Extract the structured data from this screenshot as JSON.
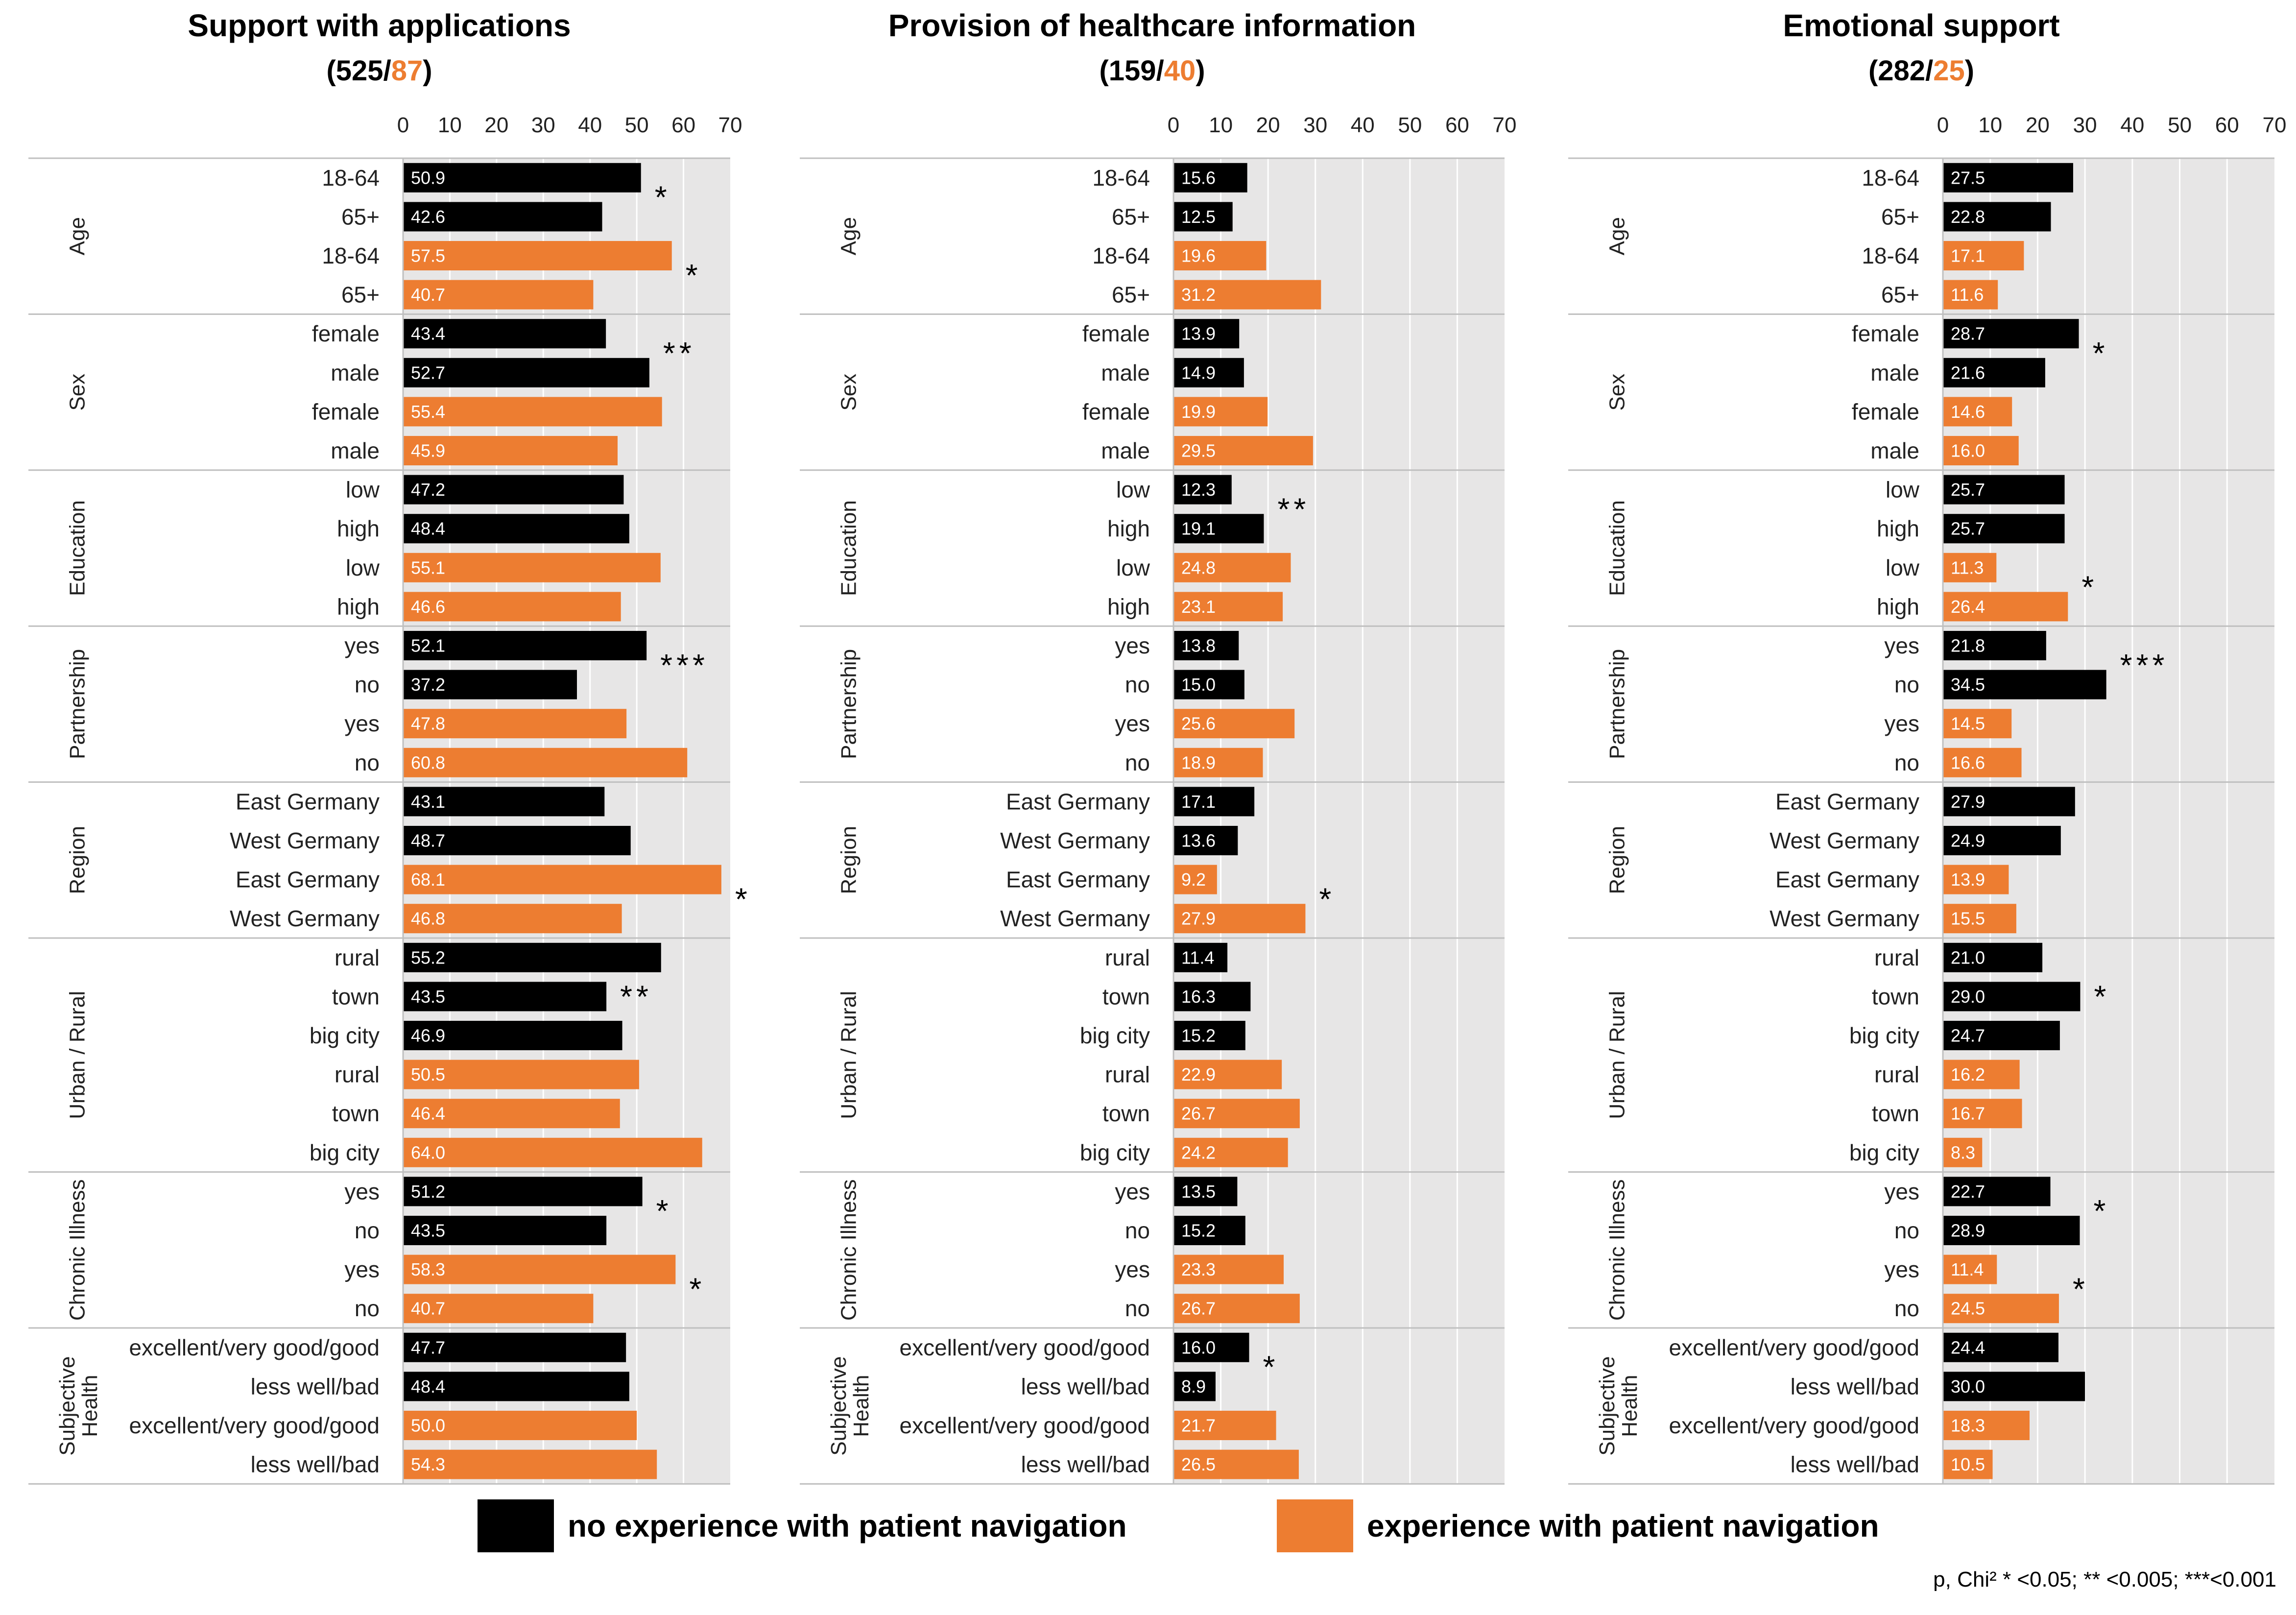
{
  "chart_data": [
    {
      "type": "bar",
      "title": "Support with applications",
      "n_no": "525",
      "n_sep": "/",
      "n_yes": "87",
      "xlim": [
        0,
        70
      ],
      "xticks": [
        "0",
        "10",
        "20",
        "30",
        "40",
        "50",
        "60",
        "70"
      ],
      "groups": [
        {
          "label": "Age",
          "sig": [
            {
              "text": "*",
              "rows": [
                0,
                1
              ]
            },
            {
              "text": "*",
              "rows": [
                2,
                3
              ]
            }
          ],
          "rows": [
            {
              "label": "18-64",
              "series": "no",
              "value": "50.9"
            },
            {
              "label": "65+",
              "series": "no",
              "value": "42.6"
            },
            {
              "label": "18-64",
              "series": "yes",
              "value": "57.5"
            },
            {
              "label": "65+",
              "series": "yes",
              "value": "40.7"
            }
          ]
        },
        {
          "label": "Sex",
          "sig": [
            {
              "text": "**",
              "rows": [
                0,
                1
              ]
            }
          ],
          "rows": [
            {
              "label": "female",
              "series": "no",
              "value": "43.4"
            },
            {
              "label": "male",
              "series": "no",
              "value": "52.7"
            },
            {
              "label": "female",
              "series": "yes",
              "value": "55.4"
            },
            {
              "label": "male",
              "series": "yes",
              "value": "45.9"
            }
          ]
        },
        {
          "label": "Education",
          "sig": [],
          "rows": [
            {
              "label": "low",
              "series": "no",
              "value": "47.2"
            },
            {
              "label": "high",
              "series": "no",
              "value": "48.4"
            },
            {
              "label": "low",
              "series": "yes",
              "value": "55.1"
            },
            {
              "label": "high",
              "series": "yes",
              "value": "46.6"
            }
          ]
        },
        {
          "label": "Partnership",
          "sig": [
            {
              "text": "***",
              "rows": [
                0,
                1
              ]
            }
          ],
          "rows": [
            {
              "label": "yes",
              "series": "no",
              "value": "52.1"
            },
            {
              "label": "no",
              "series": "no",
              "value": "37.2"
            },
            {
              "label": "yes",
              "series": "yes",
              "value": "47.8"
            },
            {
              "label": "no",
              "series": "yes",
              "value": "60.8"
            }
          ]
        },
        {
          "label": "Region",
          "sig": [
            {
              "text": "*",
              "rows": [
                2,
                3
              ]
            }
          ],
          "rows": [
            {
              "label": "East Germany",
              "series": "no",
              "value": "43.1"
            },
            {
              "label": "West Germany",
              "series": "no",
              "value": "48.7"
            },
            {
              "label": "East Germany",
              "series": "yes",
              "value": "68.1"
            },
            {
              "label": "West Germany",
              "series": "yes",
              "value": "46.8"
            }
          ]
        },
        {
          "label": "Urban / Rural",
          "sig": [
            {
              "text": "**",
              "rows": [
                1,
                1
              ]
            }
          ],
          "rows": [
            {
              "label": "rural",
              "series": "no",
              "value": "55.2"
            },
            {
              "label": "town",
              "series": "no",
              "value": "43.5"
            },
            {
              "label": "big city",
              "series": "no",
              "value": "46.9"
            },
            {
              "label": "rural",
              "series": "yes",
              "value": "50.5"
            },
            {
              "label": "town",
              "series": "yes",
              "value": "46.4"
            },
            {
              "label": "big city",
              "series": "yes",
              "value": "64.0"
            }
          ]
        },
        {
          "label": "Chronic Illness",
          "sig": [
            {
              "text": "*",
              "rows": [
                0,
                1
              ]
            },
            {
              "text": "*",
              "rows": [
                2,
                3
              ]
            }
          ],
          "rows": [
            {
              "label": "yes",
              "series": "no",
              "value": "51.2"
            },
            {
              "label": "no",
              "series": "no",
              "value": "43.5"
            },
            {
              "label": "yes",
              "series": "yes",
              "value": "58.3"
            },
            {
              "label": "no",
              "series": "yes",
              "value": "40.7"
            }
          ]
        },
        {
          "label": "Subjective Health",
          "sig": [],
          "rows": [
            {
              "label": "excellent/very good/good",
              "series": "no",
              "value": "47.7"
            },
            {
              "label": "less well/bad",
              "series": "no",
              "value": "48.4"
            },
            {
              "label": "excellent/very good/good",
              "series": "yes",
              "value": "50.0"
            },
            {
              "label": "less well/bad",
              "series": "yes",
              "value": "54.3"
            }
          ]
        }
      ]
    },
    {
      "type": "bar",
      "title": "Provision of healthcare information",
      "n_no": "159",
      "n_sep": "/",
      "n_yes": "40",
      "xlim": [
        0,
        70
      ],
      "xticks": [
        "0",
        "10",
        "20",
        "30",
        "40",
        "50",
        "60",
        "70"
      ],
      "groups": [
        {
          "label": "Age",
          "sig": [],
          "rows": [
            {
              "label": "18-64",
              "series": "no",
              "value": "15.6"
            },
            {
              "label": "65+",
              "series": "no",
              "value": "12.5"
            },
            {
              "label": "18-64",
              "series": "yes",
              "value": "19.6"
            },
            {
              "label": "65+",
              "series": "yes",
              "value": "31.2"
            }
          ]
        },
        {
          "label": "Sex",
          "sig": [],
          "rows": [
            {
              "label": "female",
              "series": "no",
              "value": "13.9"
            },
            {
              "label": "male",
              "series": "no",
              "value": "14.9"
            },
            {
              "label": "female",
              "series": "yes",
              "value": "19.9"
            },
            {
              "label": "male",
              "series": "yes",
              "value": "29.5"
            }
          ]
        },
        {
          "label": "Education",
          "sig": [
            {
              "text": "**",
              "rows": [
                0,
                1
              ]
            }
          ],
          "rows": [
            {
              "label": "low",
              "series": "no",
              "value": "12.3"
            },
            {
              "label": "high",
              "series": "no",
              "value": "19.1"
            },
            {
              "label": "low",
              "series": "yes",
              "value": "24.8"
            },
            {
              "label": "high",
              "series": "yes",
              "value": "23.1"
            }
          ]
        },
        {
          "label": "Partnership",
          "sig": [],
          "rows": [
            {
              "label": "yes",
              "series": "no",
              "value": "13.8"
            },
            {
              "label": "no",
              "series": "no",
              "value": "15.0"
            },
            {
              "label": "yes",
              "series": "yes",
              "value": "25.6"
            },
            {
              "label": "no",
              "series": "yes",
              "value": "18.9"
            }
          ]
        },
        {
          "label": "Region",
          "sig": [
            {
              "text": "*",
              "rows": [
                2,
                3
              ]
            }
          ],
          "rows": [
            {
              "label": "East Germany",
              "series": "no",
              "value": "17.1"
            },
            {
              "label": "West Germany",
              "series": "no",
              "value": "13.6"
            },
            {
              "label": "East Germany",
              "series": "yes",
              "value": "9.2"
            },
            {
              "label": "West Germany",
              "series": "yes",
              "value": "27.9"
            }
          ]
        },
        {
          "label": "Urban / Rural",
          "sig": [],
          "rows": [
            {
              "label": "rural",
              "series": "no",
              "value": "11.4"
            },
            {
              "label": "town",
              "series": "no",
              "value": "16.3"
            },
            {
              "label": "big city",
              "series": "no",
              "value": "15.2"
            },
            {
              "label": "rural",
              "series": "yes",
              "value": "22.9"
            },
            {
              "label": "town",
              "series": "yes",
              "value": "26.7"
            },
            {
              "label": "big city",
              "series": "yes",
              "value": "24.2"
            }
          ]
        },
        {
          "label": "Chronic Illness",
          "sig": [],
          "rows": [
            {
              "label": "yes",
              "series": "no",
              "value": "13.5"
            },
            {
              "label": "no",
              "series": "no",
              "value": "15.2"
            },
            {
              "label": "yes",
              "series": "yes",
              "value": "23.3"
            },
            {
              "label": "no",
              "series": "yes",
              "value": "26.7"
            }
          ]
        },
        {
          "label": "Subjective Health",
          "sig": [
            {
              "text": "*",
              "rows": [
                0,
                1
              ]
            }
          ],
          "rows": [
            {
              "label": "excellent/very good/good",
              "series": "no",
              "value": "16.0"
            },
            {
              "label": "less well/bad",
              "series": "no",
              "value": "8.9"
            },
            {
              "label": "excellent/very good/good",
              "series": "yes",
              "value": "21.7"
            },
            {
              "label": "less well/bad",
              "series": "yes",
              "value": "26.5"
            }
          ]
        }
      ]
    },
    {
      "type": "bar",
      "title": "Emotional support",
      "n_no": "282",
      "n_sep": "/",
      "n_yes": "25",
      "xlim": [
        0,
        70
      ],
      "xticks": [
        "0",
        "10",
        "20",
        "30",
        "40",
        "50",
        "60",
        "70"
      ],
      "groups": [
        {
          "label": "Age",
          "sig": [],
          "rows": [
            {
              "label": "18-64",
              "series": "no",
              "value": "27.5"
            },
            {
              "label": "65+",
              "series": "no",
              "value": "22.8"
            },
            {
              "label": "18-64",
              "series": "yes",
              "value": "17.1"
            },
            {
              "label": "65+",
              "series": "yes",
              "value": "11.6"
            }
          ]
        },
        {
          "label": "Sex",
          "sig": [
            {
              "text": "*",
              "rows": [
                0,
                1
              ]
            }
          ],
          "rows": [
            {
              "label": "female",
              "series": "no",
              "value": "28.7"
            },
            {
              "label": "male",
              "series": "no",
              "value": "21.6"
            },
            {
              "label": "female",
              "series": "yes",
              "value": "14.6"
            },
            {
              "label": "male",
              "series": "yes",
              "value": "16.0"
            }
          ]
        },
        {
          "label": "Education",
          "sig": [
            {
              "text": "*",
              "rows": [
                2,
                3
              ]
            }
          ],
          "rows": [
            {
              "label": "low",
              "series": "no",
              "value": "25.7"
            },
            {
              "label": "high",
              "series": "no",
              "value": "25.7"
            },
            {
              "label": "low",
              "series": "yes",
              "value": "11.3"
            },
            {
              "label": "high",
              "series": "yes",
              "value": "26.4"
            }
          ]
        },
        {
          "label": "Partnership",
          "sig": [
            {
              "text": "***",
              "rows": [
                0,
                1
              ]
            }
          ],
          "rows": [
            {
              "label": "yes",
              "series": "no",
              "value": "21.8"
            },
            {
              "label": "no",
              "series": "no",
              "value": "34.5"
            },
            {
              "label": "yes",
              "series": "yes",
              "value": "14.5"
            },
            {
              "label": "no",
              "series": "yes",
              "value": "16.6"
            }
          ]
        },
        {
          "label": "Region",
          "sig": [],
          "rows": [
            {
              "label": "East Germany",
              "series": "no",
              "value": "27.9"
            },
            {
              "label": "West Germany",
              "series": "no",
              "value": "24.9"
            },
            {
              "label": "East Germany",
              "series": "yes",
              "value": "13.9"
            },
            {
              "label": "West Germany",
              "series": "yes",
              "value": "15.5"
            }
          ]
        },
        {
          "label": "Urban / Rural",
          "sig": [
            {
              "text": "*",
              "rows": [
                1,
                1
              ]
            }
          ],
          "rows": [
            {
              "label": "rural",
              "series": "no",
              "value": "21.0"
            },
            {
              "label": "town",
              "series": "no",
              "value": "29.0"
            },
            {
              "label": "big city",
              "series": "no",
              "value": "24.7"
            },
            {
              "label": "rural",
              "series": "yes",
              "value": "16.2"
            },
            {
              "label": "town",
              "series": "yes",
              "value": "16.7"
            },
            {
              "label": "big city",
              "series": "yes",
              "value": "8.3"
            }
          ]
        },
        {
          "label": "Chronic Illness",
          "sig": [
            {
              "text": "*",
              "rows": [
                0,
                1
              ]
            },
            {
              "text": "*",
              "rows": [
                2,
                3
              ]
            }
          ],
          "rows": [
            {
              "label": "yes",
              "series": "no",
              "value": "22.7"
            },
            {
              "label": "no",
              "series": "no",
              "value": "28.9"
            },
            {
              "label": "yes",
              "series": "yes",
              "value": "11.4"
            },
            {
              "label": "no",
              "series": "yes",
              "value": "24.5"
            }
          ]
        },
        {
          "label": "Subjective Health",
          "sig": [],
          "rows": [
            {
              "label": "excellent/very good/good",
              "series": "no",
              "value": "24.4"
            },
            {
              "label": "less well/bad",
              "series": "no",
              "value": "30.0"
            },
            {
              "label": "excellent/very good/good",
              "series": "yes",
              "value": "18.3"
            },
            {
              "label": "less well/bad",
              "series": "yes",
              "value": "10.5"
            }
          ]
        }
      ]
    }
  ],
  "legend": {
    "no_label": "no experience with patient navigation",
    "yes_label": "experience with patient navigation"
  },
  "footnote": "p, Chi² * <0.05; ** <0.005; ***<0.001",
  "colors": {
    "no": "#000000",
    "yes": "#ED7D31",
    "plot_bg": "#E7E6E6",
    "grid": "#ffffff",
    "separator": "#BFBFBF"
  }
}
